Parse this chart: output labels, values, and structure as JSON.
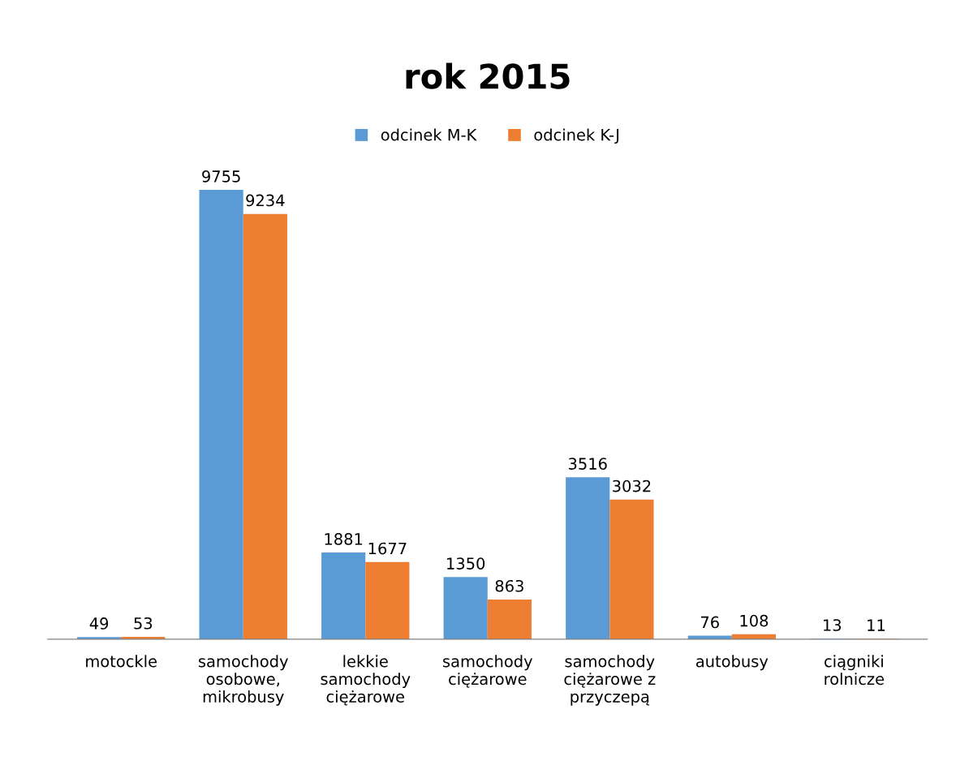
{
  "chart_data": {
    "type": "bar",
    "title": "rok 2015",
    "categories": [
      "motockle",
      "samochody\nosobowe,\nmikrobusy",
      "lekkie\nsamochody\nciężarowe",
      "samochody\nciężarowe",
      "samochody\nciężarowe z\nprzyczepą",
      "autobusy",
      "ciągniki\nrolnicze"
    ],
    "series": [
      {
        "name": "odcinek M-K",
        "color": "#5b9bd5",
        "values": [
          49,
          9755,
          1881,
          1350,
          3516,
          76,
          13
        ]
      },
      {
        "name": "odcinek K-J",
        "color": "#ed7d31",
        "values": [
          53,
          9234,
          1677,
          863,
          3032,
          108,
          11
        ]
      }
    ],
    "data_labels": true,
    "legend": "top",
    "grid": false,
    "tick_labels": "x"
  }
}
